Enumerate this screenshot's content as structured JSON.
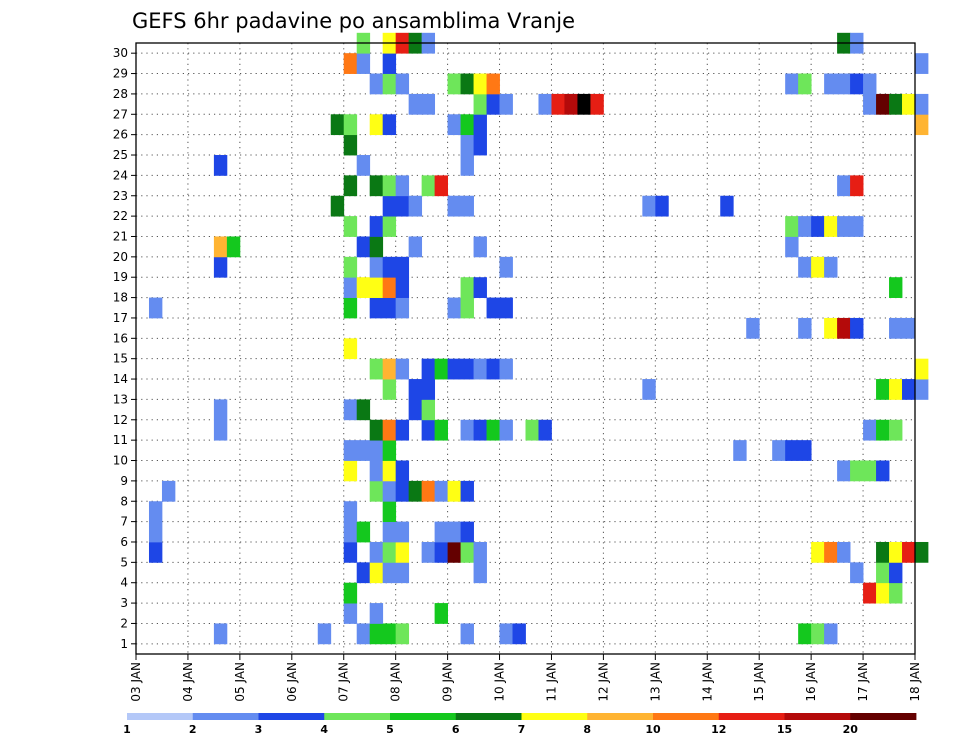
{
  "chart_data": {
    "type": "heatmap",
    "title": "GEFS 6hr padavine po ansamblima Vranje",
    "x_tick_labels": [
      "03 JAN",
      "04 JAN",
      "05 JAN",
      "06 JAN",
      "07 JAN",
      "08 JAN",
      "09 JAN",
      "10 JAN",
      "11 JAN",
      "12 JAN",
      "13 JAN",
      "14 JAN",
      "15 JAN",
      "16 JAN",
      "17 JAN",
      "18 JAN"
    ],
    "y_tick_labels": [
      "1",
      "2",
      "3",
      "4",
      "5",
      "6",
      "7",
      "8",
      "9",
      "10",
      "11",
      "12",
      "13",
      "14",
      "15",
      "16",
      "17",
      "18",
      "19",
      "20",
      "21",
      "22",
      "23",
      "24",
      "25",
      "26",
      "27",
      "28",
      "29",
      "30"
    ],
    "colorbar": {
      "labels": [
        "1",
        "2",
        "3",
        "4",
        "5",
        "6",
        "7",
        "8",
        "10",
        "12",
        "15",
        "20"
      ],
      "colors": [
        "#b4c8f8",
        "#648cf0",
        "#1e46e6",
        "#6ee65a",
        "#14c81e",
        "#0a7814",
        "#ffff14",
        "#ffb432",
        "#ff7814",
        "#e61e14",
        "#b40a0a",
        "#640000"
      ]
    },
    "grid": true,
    "time_steps_per_day": 4,
    "members": [
      {
        "member": 1,
        "cells": [
          [
            1.5,
            1
          ],
          [
            3.5,
            1
          ],
          [
            4.25,
            1
          ],
          [
            4.5,
            4
          ],
          [
            4.75,
            4
          ],
          [
            5,
            3
          ],
          [
            6.25,
            1
          ],
          [
            7.0,
            1
          ],
          [
            7.25,
            2
          ],
          [
            12.75,
            4
          ],
          [
            13.0,
            3
          ],
          [
            13.25,
            1
          ]
        ]
      },
      {
        "member": 2,
        "cells": [
          [
            4.0,
            1
          ],
          [
            4.5,
            1
          ],
          [
            5.75,
            4
          ]
        ]
      },
      {
        "member": 3,
        "cells": [
          [
            4.0,
            4
          ],
          [
            14.0,
            9
          ],
          [
            14.25,
            6
          ],
          [
            14.5,
            3
          ]
        ]
      },
      {
        "member": 4,
        "cells": [
          [
            4.25,
            2
          ],
          [
            4.5,
            6
          ],
          [
            4.75,
            1
          ],
          [
            5.0,
            1
          ],
          [
            6.5,
            1
          ],
          [
            13.75,
            1
          ],
          [
            14.25,
            3
          ],
          [
            14.5,
            2
          ]
        ]
      },
      {
        "member": 5,
        "cells": [
          [
            0.25,
            2
          ],
          [
            4.0,
            2
          ],
          [
            4.5,
            1
          ],
          [
            4.75,
            3
          ],
          [
            5.0,
            6
          ],
          [
            5.5,
            1
          ],
          [
            5.75,
            2
          ],
          [
            6.0,
            11
          ],
          [
            6.25,
            3
          ],
          [
            6.5,
            1
          ],
          [
            13.0,
            6
          ],
          [
            13.25,
            8
          ],
          [
            13.5,
            1
          ],
          [
            14.25,
            5
          ],
          [
            14.5,
            6
          ],
          [
            14.75,
            9
          ],
          [
            15.0,
            5
          ]
        ]
      },
      {
        "member": 6,
        "cells": [
          [
            0.25,
            1
          ],
          [
            4.0,
            1
          ],
          [
            4.25,
            4
          ],
          [
            4.75,
            1
          ],
          [
            5.0,
            1
          ],
          [
            5.75,
            1
          ],
          [
            6.0,
            1
          ],
          [
            6.25,
            2
          ]
        ]
      },
      {
        "member": 7,
        "cells": [
          [
            0.25,
            1
          ],
          [
            4.0,
            1
          ],
          [
            4.75,
            4
          ]
        ]
      },
      {
        "member": 8,
        "cells": [
          [
            0.5,
            1
          ],
          [
            4.5,
            3
          ],
          [
            4.75,
            1
          ],
          [
            5.0,
            2
          ],
          [
            5.25,
            5
          ],
          [
            5.5,
            8
          ],
          [
            5.75,
            1
          ],
          [
            6.0,
            6
          ],
          [
            6.25,
            2
          ]
        ]
      },
      {
        "member": 9,
        "cells": [
          [
            4.0,
            6
          ],
          [
            4.5,
            1
          ],
          [
            4.75,
            6
          ],
          [
            5.0,
            2
          ],
          [
            13.5,
            1
          ],
          [
            13.75,
            3
          ],
          [
            14.0,
            3
          ],
          [
            14.25,
            2
          ]
        ]
      },
      {
        "member": 10,
        "cells": [
          [
            4.0,
            1
          ],
          [
            4.25,
            1
          ],
          [
            4.5,
            1
          ],
          [
            4.75,
            4
          ],
          [
            11.5,
            1
          ],
          [
            12.25,
            1
          ],
          [
            12.5,
            2
          ],
          [
            12.75,
            2
          ]
        ]
      },
      {
        "member": 11,
        "cells": [
          [
            1.5,
            1
          ],
          [
            4.5,
            5
          ],
          [
            4.75,
            8
          ],
          [
            5.0,
            2
          ],
          [
            5.5,
            2
          ],
          [
            5.75,
            4
          ],
          [
            6.25,
            1
          ],
          [
            6.5,
            2
          ],
          [
            6.75,
            4
          ],
          [
            7.0,
            1
          ],
          [
            7.5,
            3
          ],
          [
            7.75,
            2
          ],
          [
            14.0,
            1
          ],
          [
            14.25,
            4
          ],
          [
            14.5,
            3
          ]
        ]
      },
      {
        "member": 12,
        "cells": [
          [
            1.5,
            1
          ],
          [
            4.0,
            1
          ],
          [
            4.25,
            5
          ],
          [
            5.25,
            2
          ],
          [
            5.5,
            3
          ]
        ]
      },
      {
        "member": 13,
        "cells": [
          [
            4.75,
            3
          ],
          [
            5.25,
            2
          ],
          [
            5.5,
            2
          ],
          [
            9.75,
            1
          ],
          [
            14.25,
            4
          ],
          [
            14.5,
            6
          ],
          [
            14.75,
            2
          ],
          [
            15.0,
            1
          ]
        ]
      },
      {
        "member": 14,
        "cells": [
          [
            4.5,
            3
          ],
          [
            4.75,
            7
          ],
          [
            5.0,
            1
          ],
          [
            5.5,
            2
          ],
          [
            5.75,
            4
          ],
          [
            6.0,
            2
          ],
          [
            6.25,
            2
          ],
          [
            6.5,
            1
          ],
          [
            6.75,
            2
          ],
          [
            7.0,
            1
          ],
          [
            15.0,
            6
          ]
        ]
      },
      {
        "member": 15,
        "cells": [
          [
            4.0,
            6
          ]
        ]
      },
      {
        "member": 16,
        "cells": [
          [
            11.75,
            1
          ],
          [
            12.75,
            1
          ],
          [
            13.25,
            6
          ],
          [
            13.5,
            10
          ],
          [
            13.75,
            2
          ],
          [
            14.5,
            1
          ],
          [
            14.75,
            1
          ]
        ]
      },
      {
        "member": 17,
        "cells": [
          [
            0.25,
            1
          ],
          [
            4.0,
            4
          ],
          [
            4.5,
            2
          ],
          [
            4.75,
            2
          ],
          [
            5.0,
            1
          ],
          [
            6.0,
            1
          ],
          [
            6.25,
            3
          ],
          [
            6.75,
            2
          ],
          [
            7.0,
            2
          ]
        ]
      },
      {
        "member": 18,
        "cells": [
          [
            4.0,
            1
          ],
          [
            4.25,
            6
          ],
          [
            4.5,
            6
          ],
          [
            4.75,
            8
          ],
          [
            5.0,
            2
          ],
          [
            6.25,
            3
          ],
          [
            6.5,
            2
          ],
          [
            14.5,
            4
          ]
        ]
      },
      {
        "member": 19,
        "cells": [
          [
            1.5,
            2
          ],
          [
            4.0,
            3
          ],
          [
            4.5,
            1
          ],
          [
            4.75,
            2
          ],
          [
            5.0,
            2
          ],
          [
            7.0,
            1
          ],
          [
            12.75,
            1
          ],
          [
            13.0,
            6
          ],
          [
            13.25,
            1
          ]
        ]
      },
      {
        "member": 20,
        "cells": [
          [
            1.5,
            7
          ],
          [
            1.75,
            4
          ],
          [
            4.25,
            2
          ],
          [
            4.5,
            5
          ],
          [
            5.25,
            1
          ],
          [
            6.5,
            1
          ],
          [
            12.5,
            1
          ]
        ]
      },
      {
        "member": 21,
        "cells": [
          [
            4.0,
            3
          ],
          [
            4.5,
            2
          ],
          [
            4.75,
            3
          ],
          [
            12.5,
            3
          ],
          [
            12.75,
            1
          ],
          [
            13.0,
            2
          ],
          [
            13.25,
            6
          ],
          [
            13.5,
            1
          ],
          [
            13.75,
            1
          ]
        ]
      },
      {
        "member": 22,
        "cells": [
          [
            3.75,
            5
          ],
          [
            4.75,
            2
          ],
          [
            5.0,
            2
          ],
          [
            5.25,
            1
          ],
          [
            6.0,
            1
          ],
          [
            6.25,
            1
          ],
          [
            9.75,
            1
          ],
          [
            10.0,
            2
          ],
          [
            11.25,
            2
          ]
        ]
      },
      {
        "member": 23,
        "cells": [
          [
            4.0,
            5
          ],
          [
            4.5,
            5
          ],
          [
            4.75,
            3
          ],
          [
            5.0,
            1
          ],
          [
            5.5,
            3
          ],
          [
            5.75,
            9
          ],
          [
            13.5,
            1
          ],
          [
            13.75,
            9
          ]
        ]
      },
      {
        "member": 24,
        "cells": [
          [
            1.5,
            2
          ],
          [
            4.25,
            1
          ],
          [
            6.25,
            1
          ]
        ]
      },
      {
        "member": 25,
        "cells": [
          [
            4.0,
            5
          ],
          [
            6.25,
            1
          ],
          [
            6.5,
            2
          ]
        ]
      },
      {
        "member": 26,
        "cells": [
          [
            3.75,
            5
          ],
          [
            4.0,
            3
          ],
          [
            4.5,
            6
          ],
          [
            4.75,
            2
          ],
          [
            6.0,
            1
          ],
          [
            6.25,
            4
          ],
          [
            6.5,
            2
          ],
          [
            15.0,
            7
          ]
        ]
      },
      {
        "member": 27,
        "cells": [
          [
            5.25,
            1
          ],
          [
            5.5,
            1
          ],
          [
            6.5,
            3
          ],
          [
            6.75,
            2
          ],
          [
            7.0,
            1
          ],
          [
            7.75,
            1
          ],
          [
            8.0,
            9
          ],
          [
            8.25,
            10
          ],
          [
            8.5,
            12
          ],
          [
            8.75,
            9
          ],
          [
            14.0,
            1
          ],
          [
            14.25,
            11
          ],
          [
            14.5,
            5
          ],
          [
            14.75,
            6
          ],
          [
            15.0,
            1
          ]
        ]
      },
      {
        "member": 28,
        "cells": [
          [
            4.5,
            1
          ],
          [
            4.75,
            3
          ],
          [
            5.0,
            1
          ],
          [
            6.0,
            3
          ],
          [
            6.25,
            5
          ],
          [
            6.5,
            6
          ],
          [
            6.75,
            8
          ],
          [
            12.5,
            1
          ],
          [
            12.75,
            3
          ],
          [
            13.25,
            1
          ],
          [
            13.5,
            1
          ],
          [
            13.75,
            2
          ],
          [
            14.0,
            1
          ]
        ]
      },
      {
        "member": 29,
        "cells": [
          [
            4.0,
            8
          ],
          [
            4.25,
            1
          ],
          [
            4.75,
            2
          ],
          [
            15.0,
            1
          ]
        ]
      },
      {
        "member": 30,
        "cells": [
          [
            4.25,
            3
          ],
          [
            4.75,
            6
          ],
          [
            5.0,
            9
          ],
          [
            5.25,
            5
          ],
          [
            5.5,
            1
          ],
          [
            13.5,
            5
          ],
          [
            13.75,
            1
          ]
        ]
      }
    ]
  }
}
